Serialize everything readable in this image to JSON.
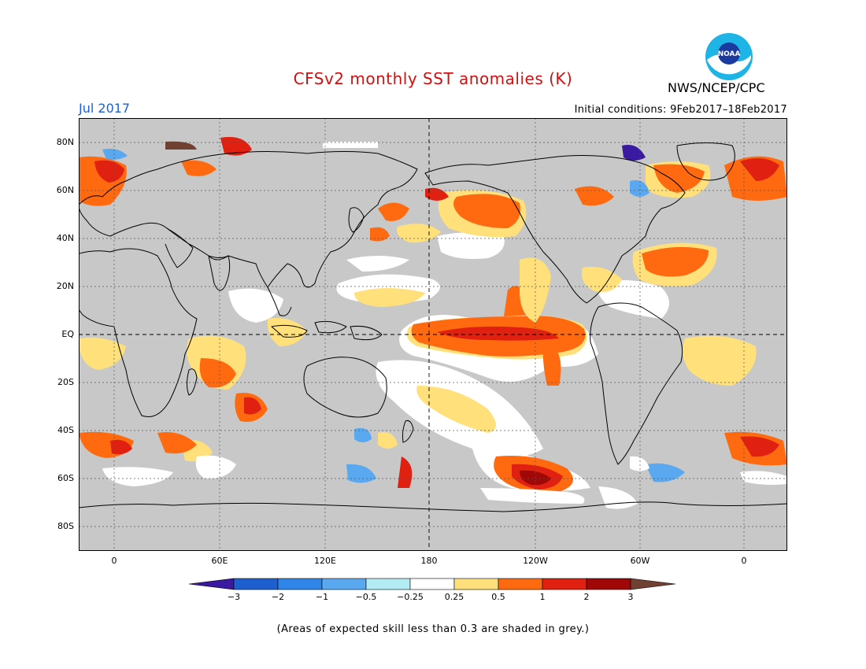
{
  "header": {
    "title": "CFSv2 monthly SST anomalies (K)",
    "agency": "NWS/NCEP/CPC",
    "logo_text": "NOAA",
    "month": "Jul 2017",
    "initial_conditions": "Initial conditions: 9Feb2017–18Feb2017"
  },
  "axes": {
    "lat_labels": [
      "80N",
      "60N",
      "40N",
      "20N",
      "EQ",
      "20S",
      "40S",
      "60S",
      "80S"
    ],
    "lon_labels": [
      "0",
      "60E",
      "120E",
      "180",
      "120W",
      "60W",
      "0"
    ]
  },
  "colorbar": {
    "labels": [
      "−3",
      "−2",
      "−1",
      "−0.5",
      "−0.25",
      "0.25",
      "0.5",
      "1",
      "2",
      "3"
    ],
    "colors": [
      "#3a1aa0",
      "#1e5fd0",
      "#2f86e8",
      "#5aa8ef",
      "#b4ecf4",
      "#ffffff",
      "#ffe07a",
      "#ff6a10",
      "#e02010",
      "#a00808",
      "#704030"
    ]
  },
  "footnote": "(Areas of expected skill less than 0.3 are shaded in grey.)",
  "colors": {
    "land_mask": "#c8c8c8",
    "title": "#d01010",
    "month": "#2060d0"
  }
}
